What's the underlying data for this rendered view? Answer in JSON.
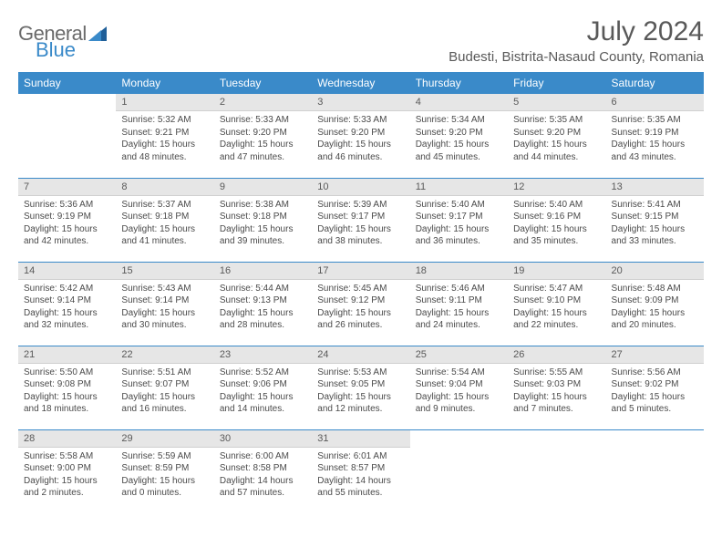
{
  "logo": {
    "text1": "General",
    "text2": "Blue"
  },
  "title": "July 2024",
  "location": "Budesti, Bistrita-Nasaud County, Romania",
  "headers": [
    "Sunday",
    "Monday",
    "Tuesday",
    "Wednesday",
    "Thursday",
    "Friday",
    "Saturday"
  ],
  "colors": {
    "brand_blue": "#3a8ac9",
    "header_text": "#ffffff",
    "daynum_bg": "#e6e6e6",
    "text": "#4a4a4a",
    "title_text": "#595959"
  },
  "weeks": [
    [
      {
        "n": "",
        "sr": "",
        "ss": "",
        "dl": ""
      },
      {
        "n": "1",
        "sr": "5:32 AM",
        "ss": "9:21 PM",
        "dl": "15 hours and 48 minutes."
      },
      {
        "n": "2",
        "sr": "5:33 AM",
        "ss": "9:20 PM",
        "dl": "15 hours and 47 minutes."
      },
      {
        "n": "3",
        "sr": "5:33 AM",
        "ss": "9:20 PM",
        "dl": "15 hours and 46 minutes."
      },
      {
        "n": "4",
        "sr": "5:34 AM",
        "ss": "9:20 PM",
        "dl": "15 hours and 45 minutes."
      },
      {
        "n": "5",
        "sr": "5:35 AM",
        "ss": "9:20 PM",
        "dl": "15 hours and 44 minutes."
      },
      {
        "n": "6",
        "sr": "5:35 AM",
        "ss": "9:19 PM",
        "dl": "15 hours and 43 minutes."
      }
    ],
    [
      {
        "n": "7",
        "sr": "5:36 AM",
        "ss": "9:19 PM",
        "dl": "15 hours and 42 minutes."
      },
      {
        "n": "8",
        "sr": "5:37 AM",
        "ss": "9:18 PM",
        "dl": "15 hours and 41 minutes."
      },
      {
        "n": "9",
        "sr": "5:38 AM",
        "ss": "9:18 PM",
        "dl": "15 hours and 39 minutes."
      },
      {
        "n": "10",
        "sr": "5:39 AM",
        "ss": "9:17 PM",
        "dl": "15 hours and 38 minutes."
      },
      {
        "n": "11",
        "sr": "5:40 AM",
        "ss": "9:17 PM",
        "dl": "15 hours and 36 minutes."
      },
      {
        "n": "12",
        "sr": "5:40 AM",
        "ss": "9:16 PM",
        "dl": "15 hours and 35 minutes."
      },
      {
        "n": "13",
        "sr": "5:41 AM",
        "ss": "9:15 PM",
        "dl": "15 hours and 33 minutes."
      }
    ],
    [
      {
        "n": "14",
        "sr": "5:42 AM",
        "ss": "9:14 PM",
        "dl": "15 hours and 32 minutes."
      },
      {
        "n": "15",
        "sr": "5:43 AM",
        "ss": "9:14 PM",
        "dl": "15 hours and 30 minutes."
      },
      {
        "n": "16",
        "sr": "5:44 AM",
        "ss": "9:13 PM",
        "dl": "15 hours and 28 minutes."
      },
      {
        "n": "17",
        "sr": "5:45 AM",
        "ss": "9:12 PM",
        "dl": "15 hours and 26 minutes."
      },
      {
        "n": "18",
        "sr": "5:46 AM",
        "ss": "9:11 PM",
        "dl": "15 hours and 24 minutes."
      },
      {
        "n": "19",
        "sr": "5:47 AM",
        "ss": "9:10 PM",
        "dl": "15 hours and 22 minutes."
      },
      {
        "n": "20",
        "sr": "5:48 AM",
        "ss": "9:09 PM",
        "dl": "15 hours and 20 minutes."
      }
    ],
    [
      {
        "n": "21",
        "sr": "5:50 AM",
        "ss": "9:08 PM",
        "dl": "15 hours and 18 minutes."
      },
      {
        "n": "22",
        "sr": "5:51 AM",
        "ss": "9:07 PM",
        "dl": "15 hours and 16 minutes."
      },
      {
        "n": "23",
        "sr": "5:52 AM",
        "ss": "9:06 PM",
        "dl": "15 hours and 14 minutes."
      },
      {
        "n": "24",
        "sr": "5:53 AM",
        "ss": "9:05 PM",
        "dl": "15 hours and 12 minutes."
      },
      {
        "n": "25",
        "sr": "5:54 AM",
        "ss": "9:04 PM",
        "dl": "15 hours and 9 minutes."
      },
      {
        "n": "26",
        "sr": "5:55 AM",
        "ss": "9:03 PM",
        "dl": "15 hours and 7 minutes."
      },
      {
        "n": "27",
        "sr": "5:56 AM",
        "ss": "9:02 PM",
        "dl": "15 hours and 5 minutes."
      }
    ],
    [
      {
        "n": "28",
        "sr": "5:58 AM",
        "ss": "9:00 PM",
        "dl": "15 hours and 2 minutes."
      },
      {
        "n": "29",
        "sr": "5:59 AM",
        "ss": "8:59 PM",
        "dl": "15 hours and 0 minutes."
      },
      {
        "n": "30",
        "sr": "6:00 AM",
        "ss": "8:58 PM",
        "dl": "14 hours and 57 minutes."
      },
      {
        "n": "31",
        "sr": "6:01 AM",
        "ss": "8:57 PM",
        "dl": "14 hours and 55 minutes."
      },
      {
        "n": "",
        "sr": "",
        "ss": "",
        "dl": ""
      },
      {
        "n": "",
        "sr": "",
        "ss": "",
        "dl": ""
      },
      {
        "n": "",
        "sr": "",
        "ss": "",
        "dl": ""
      }
    ]
  ],
  "labels": {
    "sunrise": "Sunrise: ",
    "sunset": "Sunset: ",
    "daylight": "Daylight: "
  }
}
